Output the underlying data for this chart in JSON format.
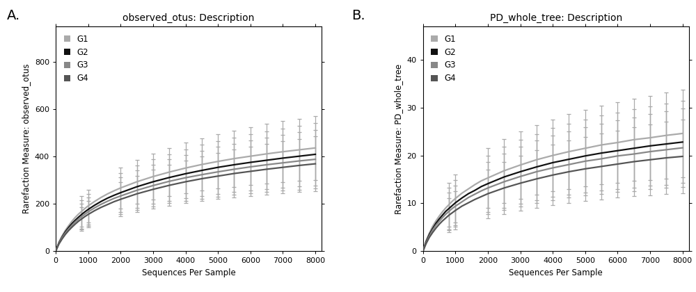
{
  "title_A": "observed_otus: Description",
  "title_B": "PD_whole_tree: Description",
  "xlabel": "Sequences Per Sample",
  "ylabel_A": "Rarefaction Measure: observed_otus",
  "ylabel_B": "Rarefaction Measure: PD_whole_tree",
  "label_A": "A.",
  "label_B": "B.",
  "groups": [
    "G1",
    "G2",
    "G3",
    "G4"
  ],
  "colors": [
    "#aaaaaa",
    "#111111",
    "#888888",
    "#555555"
  ],
  "x_ticks": [
    0,
    1000,
    2000,
    3000,
    4000,
    5000,
    6000,
    7000,
    8000
  ],
  "x_max": 8200,
  "curve_x": [
    0,
    100,
    200,
    300,
    400,
    500,
    600,
    700,
    800,
    900,
    1000,
    1200,
    1400,
    1600,
    1800,
    2000,
    2500,
    3000,
    3500,
    4000,
    4500,
    5000,
    5500,
    6000,
    6500,
    7000,
    7500,
    8000
  ],
  "A_curves": [
    [
      0,
      38,
      65,
      88,
      108,
      126,
      142,
      156,
      168,
      180,
      191,
      210,
      227,
      242,
      255,
      267,
      293,
      315,
      334,
      351,
      366,
      379,
      391,
      401,
      411,
      420,
      428,
      436
    ],
    [
      0,
      35,
      60,
      82,
      100,
      116,
      130,
      143,
      155,
      166,
      176,
      194,
      210,
      224,
      236,
      247,
      272,
      293,
      311,
      327,
      341,
      354,
      365,
      375,
      384,
      393,
      401,
      409
    ],
    [
      0,
      33,
      57,
      77,
      94,
      109,
      123,
      135,
      146,
      156,
      166,
      183,
      198,
      211,
      223,
      233,
      257,
      277,
      295,
      310,
      323,
      335,
      346,
      356,
      365,
      373,
      381,
      388
    ],
    [
      0,
      30,
      52,
      71,
      87,
      101,
      114,
      126,
      136,
      146,
      155,
      171,
      185,
      197,
      209,
      219,
      242,
      261,
      278,
      293,
      306,
      317,
      328,
      337,
      346,
      354,
      362,
      369
    ]
  ],
  "A_errors": [
    [
      0,
      25,
      35,
      42,
      48,
      53,
      57,
      61,
      64,
      67,
      69,
      73,
      77,
      80,
      83,
      86,
      92,
      97,
      102,
      107,
      111,
      115,
      119,
      122,
      126,
      129,
      132,
      135
    ],
    [
      0,
      22,
      32,
      38,
      44,
      49,
      53,
      57,
      60,
      63,
      65,
      70,
      74,
      77,
      80,
      83,
      89,
      94,
      99,
      103,
      108,
      112,
      115,
      119,
      122,
      125,
      128,
      131
    ],
    [
      0,
      20,
      29,
      35,
      40,
      45,
      49,
      52,
      55,
      58,
      61,
      65,
      69,
      72,
      75,
      78,
      84,
      89,
      93,
      97,
      101,
      105,
      108,
      112,
      115,
      118,
      121,
      124
    ],
    [
      0,
      18,
      26,
      31,
      36,
      40,
      44,
      47,
      50,
      53,
      56,
      60,
      63,
      66,
      69,
      72,
      77,
      82,
      86,
      90,
      94,
      97,
      101,
      104,
      107,
      110,
      113,
      116
    ]
  ],
  "B_curves": [
    [
      0,
      2.2,
      3.8,
      5.2,
      6.3,
      7.3,
      8.2,
      9.0,
      9.7,
      10.4,
      11.0,
      12.1,
      13.0,
      13.9,
      14.7,
      15.3,
      16.8,
      18.0,
      19.1,
      20.0,
      20.8,
      21.5,
      22.2,
      22.7,
      23.3,
      23.7,
      24.2,
      24.6
    ],
    [
      0,
      2.0,
      3.5,
      4.7,
      5.8,
      6.7,
      7.5,
      8.3,
      8.9,
      9.5,
      10.1,
      11.1,
      12.0,
      12.7,
      13.5,
      14.1,
      15.5,
      16.6,
      17.6,
      18.5,
      19.2,
      19.9,
      20.5,
      21.0,
      21.5,
      22.0,
      22.4,
      22.8
    ],
    [
      0,
      1.8,
      3.2,
      4.4,
      5.4,
      6.2,
      7.0,
      7.7,
      8.3,
      8.9,
      9.4,
      10.3,
      11.2,
      11.9,
      12.6,
      13.2,
      14.5,
      15.6,
      16.6,
      17.4,
      18.1,
      18.8,
      19.3,
      19.9,
      20.3,
      20.8,
      21.2,
      21.6
    ],
    [
      0,
      1.6,
      2.9,
      3.9,
      4.8,
      5.6,
      6.3,
      6.9,
      7.5,
      8.0,
      8.5,
      9.4,
      10.1,
      10.8,
      11.4,
      12.0,
      13.2,
      14.2,
      15.1,
      15.9,
      16.6,
      17.2,
      17.7,
      18.2,
      18.7,
      19.1,
      19.5,
      19.8
    ]
  ],
  "B_errors": [
    [
      0,
      1.8,
      2.5,
      3.0,
      3.4,
      3.8,
      4.1,
      4.4,
      4.6,
      4.8,
      5.0,
      5.3,
      5.6,
      5.9,
      6.1,
      6.3,
      6.7,
      7.0,
      7.3,
      7.5,
      7.8,
      8.0,
      8.2,
      8.4,
      8.6,
      8.8,
      9.0,
      9.1
    ],
    [
      0,
      1.6,
      2.3,
      2.7,
      3.1,
      3.5,
      3.8,
      4.0,
      4.3,
      4.5,
      4.7,
      5.0,
      5.3,
      5.5,
      5.8,
      5.9,
      6.4,
      6.7,
      6.9,
      7.2,
      7.4,
      7.6,
      7.8,
      8.0,
      8.2,
      8.3,
      8.5,
      8.6
    ],
    [
      0,
      1.4,
      2.0,
      2.5,
      2.8,
      3.2,
      3.5,
      3.7,
      3.9,
      4.1,
      4.3,
      4.6,
      4.9,
      5.1,
      5.3,
      5.5,
      5.9,
      6.2,
      6.5,
      6.7,
      6.9,
      7.1,
      7.3,
      7.5,
      7.7,
      7.9,
      8.0,
      8.2
    ],
    [
      0,
      1.2,
      1.8,
      2.2,
      2.5,
      2.9,
      3.1,
      3.4,
      3.6,
      3.8,
      4.0,
      4.2,
      4.5,
      4.7,
      4.9,
      5.1,
      5.5,
      5.8,
      6.0,
      6.3,
      6.5,
      6.7,
      6.9,
      7.0,
      7.2,
      7.4,
      7.5,
      7.7
    ]
  ],
  "eb_x": [
    800,
    1000,
    1500,
    2000,
    2500,
    3000,
    3500,
    4000,
    4500,
    5000,
    5500,
    6000,
    6500,
    7000,
    7500,
    8000
  ],
  "A_ylim": [
    0,
    950
  ],
  "A_yticks": [
    0,
    200,
    400,
    600,
    800
  ],
  "B_ylim": [
    0,
    47
  ],
  "B_yticks": [
    0,
    10,
    20,
    30,
    40
  ],
  "background_color": "#ffffff",
  "title_fontsize": 10,
  "axis_label_fontsize": 8.5,
  "tick_fontsize": 8,
  "legend_fontsize": 8.5
}
